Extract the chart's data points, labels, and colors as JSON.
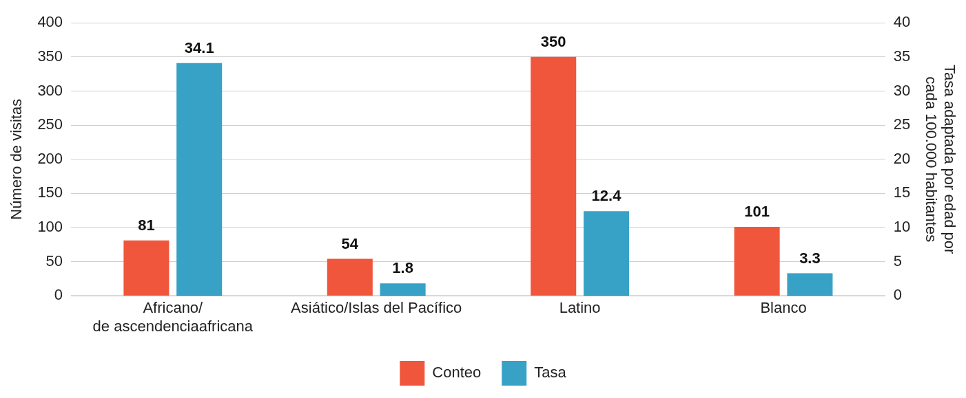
{
  "chart_data": {
    "type": "bar",
    "categories": [
      "Africano/\nde ascendenciaafricana",
      "Asiático/Islas del Pacífico",
      "Latino",
      "Blanco"
    ],
    "series": [
      {
        "name": "Conteo",
        "color": "#f0563b",
        "values": [
          81,
          54,
          350,
          101
        ]
      },
      {
        "name": "Tasa",
        "color": "#37a2c6",
        "values": [
          34.1,
          1.8,
          12.4,
          3.3
        ],
        "axis": "y2"
      }
    ],
    "ylabel": "Número de visitas",
    "y2label": "Tasa adaptada por edad por\ncada 100.000 habitantes",
    "ylim": [
      0,
      400
    ],
    "yticks": [
      0,
      50,
      100,
      150,
      200,
      250,
      300,
      350,
      400
    ],
    "y2lim": [
      0,
      40
    ],
    "y2ticks": [
      0,
      5,
      10,
      15,
      20,
      25,
      30,
      35,
      40
    ],
    "grid": "y",
    "legend": "bottom",
    "data_labels": true
  }
}
